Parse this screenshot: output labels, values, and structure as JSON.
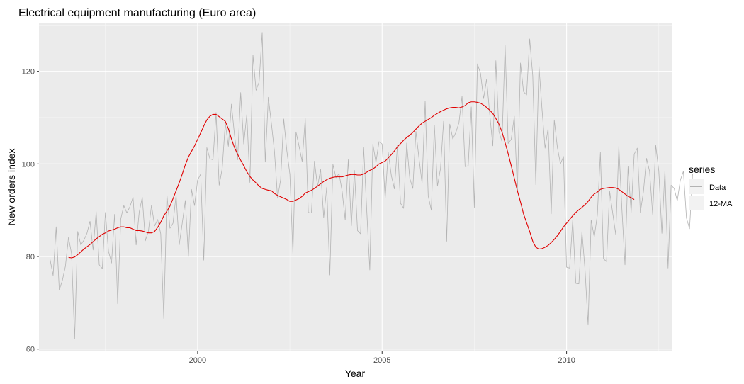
{
  "chart_data": {
    "type": "line",
    "title": "Electrical equipment manufacturing (Euro area)",
    "xlabel": "Year",
    "ylabel": "New orders index",
    "xlim": [
      1995.7,
      2012.85
    ],
    "ylim": [
      59.5,
      130.5
    ],
    "x_ticks": [
      2000,
      2005,
      2010
    ],
    "x_tick_labels": [
      "2000",
      "2005",
      "2010"
    ],
    "y_ticks": [
      60,
      80,
      100,
      120
    ],
    "y_tick_labels": [
      "60",
      "80",
      "100",
      "120"
    ],
    "grid": true,
    "legend": {
      "title": "series",
      "position": "right"
    },
    "colors": {
      "panel": "#ebebeb",
      "grid": "#ffffff",
      "data": "#b3b3b3",
      "ma": "#e00000"
    },
    "series": [
      {
        "name": "Data",
        "color": "#b3b3b3",
        "start_year": 1996,
        "frequency": 12,
        "values": [
          79.4,
          75.9,
          86.4,
          72.8,
          74.8,
          77.9,
          84.1,
          80.6,
          62.3,
          85.4,
          82.5,
          83.5,
          85.0,
          87.6,
          81.4,
          89.7,
          78.2,
          77.4,
          89.5,
          81.2,
          78.6,
          89.1,
          69.8,
          88.1,
          91.0,
          89.4,
          90.8,
          92.8,
          82.5,
          89.6,
          92.8,
          83.4,
          85.5,
          91.1,
          86.6,
          88.0,
          84.9,
          66.6,
          93.4,
          86.1,
          87.2,
          93.3,
          82.5,
          87.2,
          92.1,
          80.0,
          94.5,
          91.0,
          96.5,
          97.8,
          79.2,
          103.5,
          101.1,
          100.9,
          111.1,
          95.4,
          99.0,
          108.8,
          103.8,
          112.9,
          106.2,
          100.9,
          115.4,
          104.3,
          110.7,
          96.0,
          123.5,
          115.9,
          117.7,
          128.4,
          100.4,
          114.4,
          108.7,
          102.6,
          92.6,
          96.6,
          109.7,
          102.9,
          97.8,
          80.5,
          106.9,
          103.8,
          100.5,
          109.8,
          89.5,
          89.4,
          100.6,
          95.1,
          98.8,
          88.4,
          95.0,
          76.0,
          99.9,
          97.0,
          97.9,
          94.1,
          87.9,
          100.9,
          86.6,
          98.6,
          85.6,
          84.9,
          103.5,
          90.0,
          77.1,
          104.3,
          100.3,
          104.8,
          104.3,
          92.5,
          102.5,
          97.5,
          94.6,
          104.1,
          91.5,
          90.4,
          104.5,
          96.9,
          94.7,
          107.0,
          101.2,
          95.8,
          113.5,
          93.1,
          90.0,
          108.3,
          95.2,
          99.0,
          109.2,
          83.3,
          108.6,
          105.4,
          106.8,
          108.9,
          114.6,
          99.4,
          99.6,
          112.3,
          90.6,
          121.6,
          119.6,
          114.1,
          118.3,
          110.8,
          103.9,
          122.3,
          107.0,
          104.8,
          125.7,
          104.4,
          105.3,
          110.3,
          94.0,
          121.8,
          115.6,
          114.9,
          127.0,
          119.0,
          95.5,
          121.3,
          111.9,
          103.4,
          107.7,
          89.2,
          109.5,
          103.6,
          100.0,
          101.6,
          77.7,
          77.5,
          87.9,
          74.2,
          74.1,
          85.4,
          77.1,
          65.2,
          87.9,
          84.2,
          88.9,
          102.5,
          79.5,
          78.9,
          94.1,
          89.4,
          84.7,
          103.9,
          90.2,
          78.2,
          99.4,
          89.5,
          102.1,
          103.4,
          89.5,
          94.0,
          101.2,
          98.4,
          89.1,
          104.0,
          98.5,
          85.0,
          98.7,
          77.5,
          95.4,
          94.7,
          92.0,
          96.5,
          98.4,
          88.3,
          86.0,
          97.9
        ]
      },
      {
        "name": "12-MA",
        "color": "#e00000",
        "start_year": 1996,
        "frequency": 12,
        "start_index": 6,
        "values": [
          79.8,
          79.7,
          79.9,
          80.4,
          81.0,
          81.6,
          82.1,
          82.6,
          83.2,
          83.8,
          84.3,
          84.8,
          85.1,
          85.5,
          85.7,
          85.9,
          86.2,
          86.4,
          86.4,
          86.2,
          86.2,
          85.9,
          85.6,
          85.6,
          85.5,
          85.3,
          85.1,
          85.1,
          85.4,
          86.3,
          87.4,
          88.8,
          89.8,
          90.9,
          92.5,
          94.2,
          95.9,
          97.8,
          99.8,
          101.5,
          102.7,
          103.9,
          105.3,
          106.7,
          108.2,
          109.5,
          110.3,
          110.7,
          110.7,
          110.2,
          109.7,
          109.2,
          107.6,
          105.4,
          103.5,
          102.1,
          100.8,
          99.6,
          98.3,
          97.3,
          96.5,
          95.9,
          95.2,
          94.7,
          94.5,
          94.3,
          94.2,
          93.6,
          93.2,
          92.9,
          92.6,
          92.3,
          91.9,
          91.9,
          92.2,
          92.5,
          93.0,
          93.7,
          94.0,
          94.3,
          94.7,
          95.2,
          95.7,
          96.2,
          96.6,
          96.9,
          97.1,
          97.2,
          97.2,
          97.2,
          97.4,
          97.6,
          97.7,
          97.7,
          97.6,
          97.6,
          97.8,
          98.2,
          98.6,
          98.9,
          99.4,
          100.0,
          100.3,
          100.6,
          101.3,
          102.0,
          102.8,
          103.7,
          104.4,
          105.1,
          105.7,
          106.2,
          106.8,
          107.5,
          108.2,
          108.8,
          109.2,
          109.6,
          110.0,
          110.5,
          110.9,
          111.3,
          111.6,
          111.9,
          112.1,
          112.2,
          112.2,
          112.1,
          112.3,
          112.6,
          113.2,
          113.4,
          113.4,
          113.3,
          113.1,
          112.7,
          112.2,
          111.6,
          110.9,
          109.8,
          108.6,
          106.9,
          104.6,
          102.2,
          99.6,
          96.9,
          94.2,
          91.8,
          89.2,
          87.3,
          85.4,
          83.3,
          82.0,
          81.6,
          81.7,
          82.0,
          82.4,
          83.0,
          83.7,
          84.5,
          85.4,
          86.4,
          87.2,
          88.0,
          88.8,
          89.5,
          90.1,
          90.6,
          91.2,
          91.9,
          92.8,
          93.5,
          93.9,
          94.5,
          94.7,
          94.8,
          94.9,
          94.9,
          94.8,
          94.5,
          94.0,
          93.5,
          93.0,
          92.7,
          92.3
        ]
      }
    ]
  }
}
